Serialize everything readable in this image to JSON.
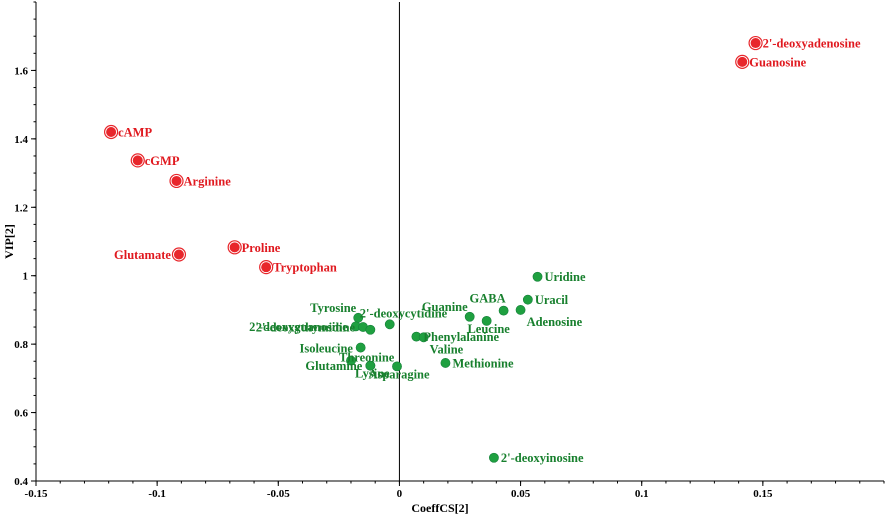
{
  "chart_data": {
    "type": "scatter",
    "title": "",
    "xlabel": "CoeffCS[2]",
    "ylabel": "VIP[2]",
    "xlim": [
      -0.15,
      0.2
    ],
    "ylim": [
      0.4,
      1.8
    ],
    "x_ticks": [
      -0.15,
      -0.1,
      -0.05,
      0,
      0.05,
      0.1,
      0.15
    ],
    "x_tick_labels": [
      "-0.15",
      "-0.1",
      "-0.05",
      "0",
      "0.05",
      "0.1",
      "0.15"
    ],
    "y_ticks": [
      0.4,
      0.6,
      0.8,
      1.0,
      1.2,
      1.4,
      1.6
    ],
    "y_tick_labels": [
      "0.4",
      "0.6",
      "0.8",
      "1",
      "1.2",
      "1.4",
      "1.6"
    ],
    "grid": false,
    "colors": {
      "significant": "#e8262b",
      "non_significant": "#1fa040",
      "label_red": "#e0191f",
      "label_green": "#18802e"
    },
    "points": [
      {
        "label": "2'-deoxyadenosine",
        "x": 0.147,
        "y": 1.68,
        "group": "significant",
        "anchor": "right"
      },
      {
        "label": "Guanosine",
        "x": 0.1415,
        "y": 1.625,
        "group": "significant",
        "anchor": "right"
      },
      {
        "label": "cAMP",
        "x": -0.119,
        "y": 1.42,
        "group": "significant",
        "anchor": "right"
      },
      {
        "label": "cGMP",
        "x": -0.108,
        "y": 1.337,
        "group": "significant",
        "anchor": "right"
      },
      {
        "label": "Arginine",
        "x": -0.092,
        "y": 1.277,
        "group": "significant",
        "anchor": "right"
      },
      {
        "label": "Proline",
        "x": -0.068,
        "y": 1.083,
        "group": "significant",
        "anchor": "right"
      },
      {
        "label": "Glutamate",
        "x": -0.091,
        "y": 1.062,
        "group": "significant",
        "anchor": "left"
      },
      {
        "label": "Tryptophan",
        "x": -0.055,
        "y": 1.025,
        "group": "significant",
        "anchor": "right"
      },
      {
        "label": "Uridine",
        "x": 0.057,
        "y": 0.997,
        "group": "other",
        "anchor": "right"
      },
      {
        "label": "Uracil",
        "x": 0.053,
        "y": 0.93,
        "group": "other",
        "anchor": "right"
      },
      {
        "label": "GABA",
        "x": 0.043,
        "y": 0.898,
        "group": "other",
        "anchor": "above"
      },
      {
        "label": "Adenosine",
        "x": 0.05,
        "y": 0.9,
        "group": "other",
        "anchor": "below-right"
      },
      {
        "label": "Guanine",
        "x": 0.029,
        "y": 0.88,
        "group": "other",
        "anchor": "above-left"
      },
      {
        "label": "2'-deoxycytidine",
        "x": -0.004,
        "y": 0.858,
        "group": "other",
        "anchor": "above-right"
      },
      {
        "label": "Tyrosine",
        "x": -0.017,
        "y": 0.877,
        "group": "other",
        "anchor": "above-left"
      },
      {
        "label": "2'-deoxyguanosine",
        "x": -0.018,
        "y": 0.852,
        "group": "other",
        "anchor": "left"
      },
      {
        "label": "2'-deoxythymidine",
        "x": -0.015,
        "y": 0.85,
        "group": "other",
        "anchor": "left"
      },
      {
        "label": "Uridine",
        "x": -0.012,
        "y": 0.842,
        "group": "other",
        "anchor": "none"
      },
      {
        "label": "Leucine",
        "x": 0.036,
        "y": 0.868,
        "group": "other",
        "anchor": "below"
      },
      {
        "label": "Phenylalanine",
        "x": 0.007,
        "y": 0.822,
        "group": "other",
        "anchor": "right"
      },
      {
        "label": "Valine",
        "x": 0.01,
        "y": 0.82,
        "group": "other",
        "anchor": "below-right"
      },
      {
        "label": "Threonine",
        "x": -0.016,
        "y": 0.79,
        "group": "other",
        "anchor": "below-left"
      },
      {
        "label": "Isoleucine",
        "x": -0.02,
        "y": 0.752,
        "group": "other",
        "anchor": "above"
      },
      {
        "label": "Methionine",
        "x": 0.019,
        "y": 0.745,
        "group": "other",
        "anchor": "right"
      },
      {
        "label": "Glutamine",
        "x": -0.012,
        "y": 0.737,
        "group": "other",
        "anchor": "left"
      },
      {
        "label": "Lysine",
        "x": -0.012,
        "y": 0.737,
        "group": "other",
        "anchor": "below"
      },
      {
        "label": "Asparagine",
        "x": -0.001,
        "y": 0.735,
        "group": "other",
        "anchor": "below"
      },
      {
        "label": "2'-deoxyinosine",
        "x": 0.039,
        "y": 0.468,
        "group": "other",
        "anchor": "right"
      }
    ]
  }
}
